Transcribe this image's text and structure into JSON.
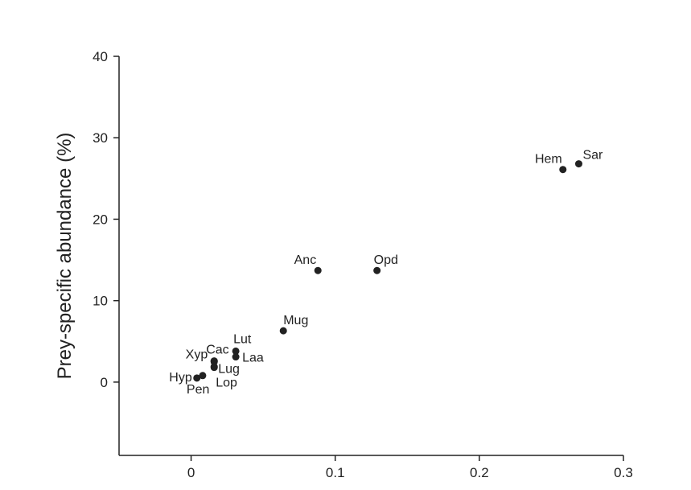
{
  "chart_data": {
    "type": "scatter",
    "title": "",
    "xlabel": "",
    "ylabel": "Prey-specific abundance (%)",
    "xlim": [
      -0.05,
      0.3
    ],
    "ylim": [
      -9,
      40
    ],
    "xticks": [
      0,
      0.1,
      0.2,
      0.3
    ],
    "xtick_labels": [
      "0",
      "0.1",
      "0.2",
      "0.3"
    ],
    "yticks": [
      0,
      10,
      20,
      30,
      40
    ],
    "ytick_labels": [
      "0",
      "10",
      "20",
      "30",
      "40"
    ],
    "grid": false,
    "points": [
      {
        "label": "Hyp",
        "x": 0.004,
        "y": 0.5
      },
      {
        "label": "Pen",
        "x": 0.008,
        "y": 0.8
      },
      {
        "label": "Xyp",
        "x": 0.016,
        "y": 2.5
      },
      {
        "label": "Cac",
        "x": 0.016,
        "y": 2.6
      },
      {
        "label": "Lug",
        "x": 0.016,
        "y": 1.9
      },
      {
        "label": "Lop",
        "x": 0.016,
        "y": 1.8
      },
      {
        "label": "Lut",
        "x": 0.031,
        "y": 3.8
      },
      {
        "label": "Laa",
        "x": 0.031,
        "y": 3.1
      },
      {
        "label": "Mug",
        "x": 0.064,
        "y": 6.3
      },
      {
        "label": "Anc",
        "x": 0.088,
        "y": 13.7
      },
      {
        "label": "Opd",
        "x": 0.129,
        "y": 13.7
      },
      {
        "label": "Hem",
        "x": 0.258,
        "y": 26.1
      },
      {
        "label": "Sar",
        "x": 0.269,
        "y": 26.8
      }
    ]
  }
}
